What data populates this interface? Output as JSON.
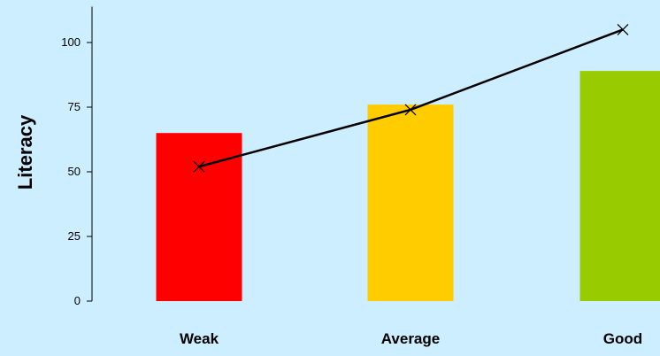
{
  "chart_data": {
    "type": "bar",
    "title": "",
    "xlabel": "",
    "ylabel": "Literacy",
    "categories": [
      "Weak",
      "Average",
      "Good"
    ],
    "bar_colors": [
      "#ff0000",
      "#ffcc00",
      "#99cc00"
    ],
    "series": [
      {
        "kind": "bar",
        "values": [
          65,
          76,
          89
        ]
      },
      {
        "kind": "line",
        "marker": "x",
        "values": [
          52,
          74,
          105
        ]
      }
    ],
    "yticks": [
      0,
      25,
      50,
      75,
      100
    ],
    "ylim": [
      0,
      107
    ],
    "grid": false,
    "legend": "none",
    "background_color": "#cceeff"
  }
}
